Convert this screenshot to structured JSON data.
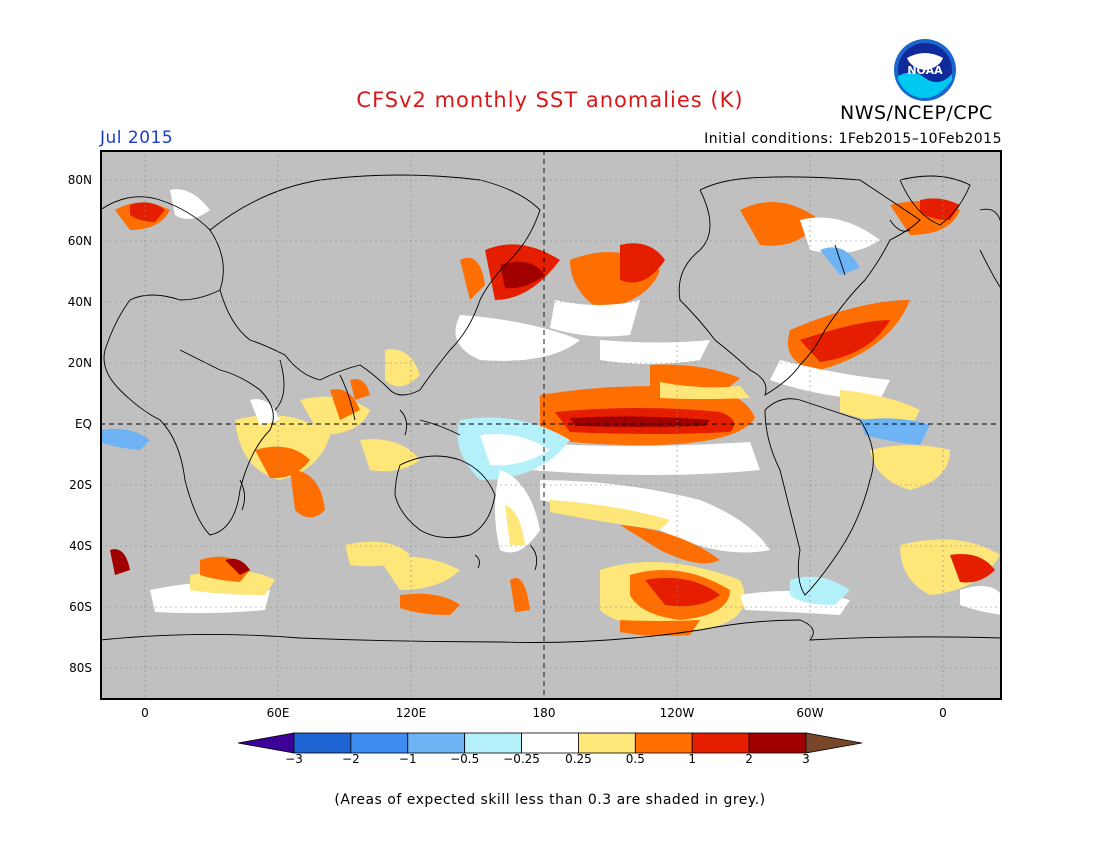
{
  "header": {
    "title": "CFSv2 monthly SST anomalies (K)",
    "org": "NWS/NCEP/CPC",
    "logo_text": "NOAA",
    "month": "Jul 2015",
    "initial_conditions": "Initial conditions: 1Feb2015–10Feb2015"
  },
  "axes": {
    "lat_labels": [
      "80N",
      "60N",
      "40N",
      "20N",
      "EQ",
      "20S",
      "40S",
      "60S",
      "80S"
    ],
    "lon_labels": [
      "0",
      "60E",
      "120E",
      "180",
      "120W",
      "60W",
      "0"
    ]
  },
  "colorbar": {
    "labels": [
      "−3",
      "−2",
      "−1",
      "−0.5",
      "−0.25",
      "0.25",
      "0.5",
      "1",
      "2",
      "3"
    ],
    "colors": [
      "#3c0096",
      "#1e64d2",
      "#3c8cf0",
      "#6eb4f5",
      "#b4f0fa",
      "#ffffff",
      "#ffe678",
      "#ff6e00",
      "#e61e00",
      "#a00000",
      "#784628"
    ]
  },
  "footnote": "(Areas of expected skill less than 0.3 are shaded in grey.)",
  "colors": {
    "grey_mask": "#c0c0c0",
    "title_red": "#d81818",
    "month_blue": "#1a3cd0"
  }
}
